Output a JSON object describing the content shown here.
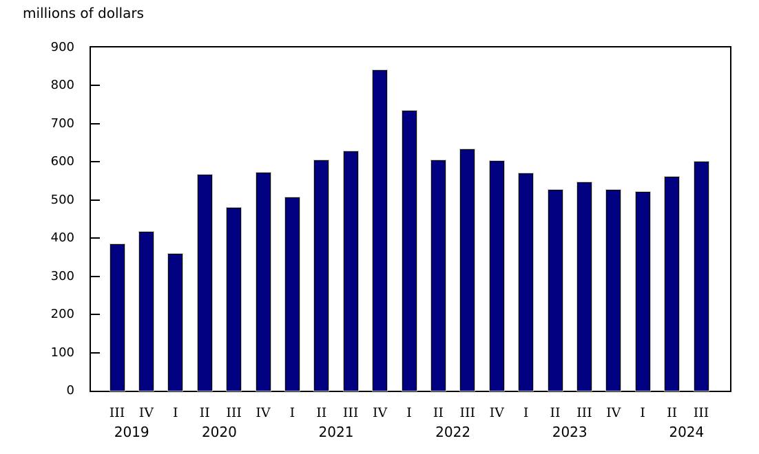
{
  "chart_data": {
    "type": "bar",
    "title": "millions of dollars",
    "xlabel": "",
    "ylabel": "millions of dollars",
    "ylim": [
      0,
      900
    ],
    "ytick_step": 100,
    "yticks": [
      0,
      100,
      200,
      300,
      400,
      500,
      600,
      700,
      800,
      900
    ],
    "grid": "off",
    "legend": "none",
    "bar_color": "#000080",
    "bar_outline_color": "#000000",
    "categories": [
      "2019 III",
      "2019 IV",
      "2020 I",
      "2020 II",
      "2020 III",
      "2020 IV",
      "2021 I",
      "2021 II",
      "2021 III",
      "2021 IV",
      "2022 I",
      "2022 II",
      "2022 III",
      "2022 IV",
      "2023 I",
      "2023 II",
      "2023 III",
      "2023 IV",
      "2024 I",
      "2024 II",
      "2024 III"
    ],
    "quarters": [
      "III",
      "IV",
      "I",
      "II",
      "III",
      "IV",
      "I",
      "II",
      "III",
      "IV",
      "I",
      "II",
      "III",
      "IV",
      "I",
      "II",
      "III",
      "IV",
      "I",
      "II",
      "III"
    ],
    "values": [
      385,
      417,
      359,
      567,
      480,
      571,
      507,
      605,
      628,
      840,
      734,
      604,
      633,
      602,
      570,
      527,
      546,
      527,
      522,
      561,
      600
    ],
    "year_groups": [
      {
        "label": "2019",
        "count": 2
      },
      {
        "label": "2020",
        "count": 4
      },
      {
        "label": "2021",
        "count": 4
      },
      {
        "label": "2022",
        "count": 4
      },
      {
        "label": "2023",
        "count": 4
      },
      {
        "label": "2024",
        "count": 3
      }
    ]
  }
}
